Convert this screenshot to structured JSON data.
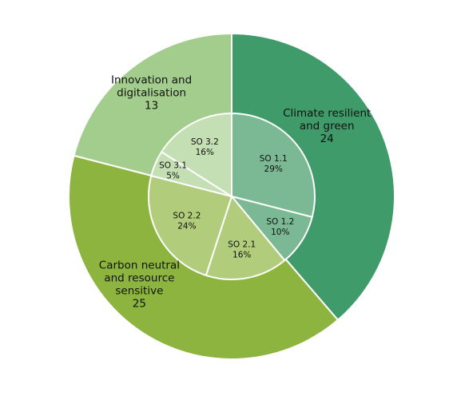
{
  "chart_data": {
    "type": "pie",
    "rings": [
      {
        "ring": "outer",
        "slices": [
          {
            "name": "Climate resilient\nand green",
            "value": 24,
            "value_label": "24",
            "color": "#3f9b69"
          },
          {
            "name": "Carbon neutral\nand resource\nsensitive",
            "value": 25,
            "value_label": "25",
            "color": "#8cb43f"
          },
          {
            "name": "Innovation and\ndigitalisation",
            "value": 13,
            "value_label": "13",
            "color": "#a2cd8c"
          }
        ]
      },
      {
        "ring": "inner",
        "slices": [
          {
            "name": "SO 1.1",
            "value": 29,
            "value_label": "29%",
            "color": "#7bb994"
          },
          {
            "name": "SO 1.2",
            "value": 10,
            "value_label": "10%",
            "color": "#7bb994"
          },
          {
            "name": "SO 2.1",
            "value": 16,
            "value_label": "16%",
            "color": "#b1cd7c"
          },
          {
            "name": "SO 2.2",
            "value": 24,
            "value_label": "24%",
            "color": "#b1cd7c"
          },
          {
            "name": "SO 3.1",
            "value": 5,
            "value_label": "5%",
            "color": "#c4dfb3"
          },
          {
            "name": "SO 3.2",
            "value": 16,
            "value_label": "16%",
            "color": "#c4dfb3"
          }
        ]
      }
    ]
  }
}
